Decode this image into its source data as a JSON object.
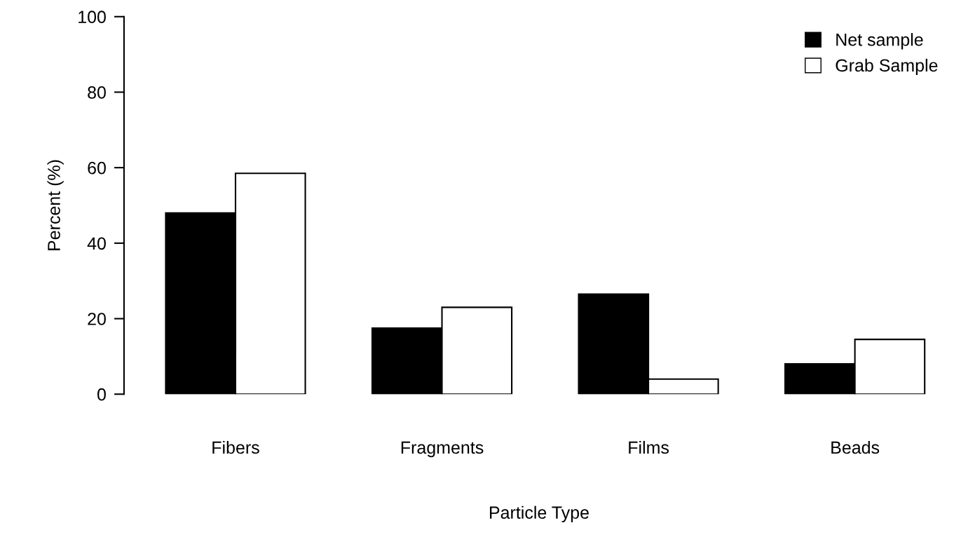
{
  "chart_data": {
    "type": "bar",
    "xlabel": "Particle Type",
    "ylabel": "Percent (%)",
    "categories": [
      "Fibers",
      "Fragments",
      "Films",
      "Beads"
    ],
    "series": [
      {
        "name": "Net sample",
        "color": "#000000",
        "values": [
          48,
          17.5,
          26.5,
          8
        ]
      },
      {
        "name": "Grab Sample",
        "color": "#ffffff",
        "values": [
          58.5,
          23,
          4,
          14.5
        ]
      }
    ],
    "ylim": [
      0,
      100
    ],
    "yticks": [
      0,
      20,
      40,
      60,
      80,
      100
    ],
    "grid": false,
    "legend": "top right"
  }
}
